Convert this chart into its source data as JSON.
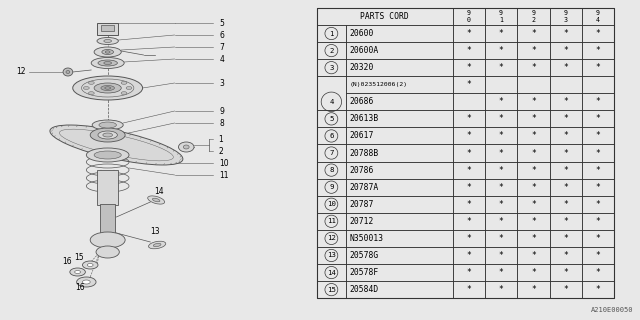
{
  "bg_color": "#e8e8e8",
  "table_header": "PARTS CORD",
  "year_cols": [
    "9\n0",
    "9\n1",
    "9\n2",
    "9\n3",
    "9\n4"
  ],
  "rows": [
    {
      "num": "1",
      "part": "20600",
      "marks": [
        "*",
        "*",
        "*",
        "*",
        "*"
      ],
      "merged_top": false,
      "merged_bot": false
    },
    {
      "num": "2",
      "part": "20600A",
      "marks": [
        "*",
        "*",
        "*",
        "*",
        "*"
      ],
      "merged_top": false,
      "merged_bot": false
    },
    {
      "num": "3",
      "part": "20320",
      "marks": [
        "*",
        "*",
        "*",
        "*",
        "*"
      ],
      "merged_top": false,
      "merged_bot": false
    },
    {
      "num": "4",
      "part": "(N)023512006(2)",
      "marks": [
        "*",
        "",
        "",
        "",
        ""
      ],
      "merged_top": true,
      "merged_bot": false
    },
    {
      "num": "4",
      "part": "20686",
      "marks": [
        "",
        "*",
        "*",
        "*",
        "*"
      ],
      "merged_top": false,
      "merged_bot": true
    },
    {
      "num": "5",
      "part": "20613B",
      "marks": [
        "*",
        "*",
        "*",
        "*",
        "*"
      ],
      "merged_top": false,
      "merged_bot": false
    },
    {
      "num": "6",
      "part": "20617",
      "marks": [
        "*",
        "*",
        "*",
        "*",
        "*"
      ],
      "merged_top": false,
      "merged_bot": false
    },
    {
      "num": "7",
      "part": "20788B",
      "marks": [
        "*",
        "*",
        "*",
        "*",
        "*"
      ],
      "merged_top": false,
      "merged_bot": false
    },
    {
      "num": "8",
      "part": "20786",
      "marks": [
        "*",
        "*",
        "*",
        "*",
        "*"
      ],
      "merged_top": false,
      "merged_bot": false
    },
    {
      "num": "9",
      "part": "20787A",
      "marks": [
        "*",
        "*",
        "*",
        "*",
        "*"
      ],
      "merged_top": false,
      "merged_bot": false
    },
    {
      "num": "10",
      "part": "20787",
      "marks": [
        "*",
        "*",
        "*",
        "*",
        "*"
      ],
      "merged_top": false,
      "merged_bot": false
    },
    {
      "num": "11",
      "part": "20712",
      "marks": [
        "*",
        "*",
        "*",
        "*",
        "*"
      ],
      "merged_top": false,
      "merged_bot": false
    },
    {
      "num": "12",
      "part": "N350013",
      "marks": [
        "*",
        "*",
        "*",
        "*",
        "*"
      ],
      "merged_top": false,
      "merged_bot": false
    },
    {
      "num": "13",
      "part": "20578G",
      "marks": [
        "*",
        "*",
        "*",
        "*",
        "*"
      ],
      "merged_top": false,
      "merged_bot": false
    },
    {
      "num": "14",
      "part": "20578F",
      "marks": [
        "*",
        "*",
        "*",
        "*",
        "*"
      ],
      "merged_top": false,
      "merged_bot": false
    },
    {
      "num": "15",
      "part": "20584D",
      "marks": [
        "*",
        "*",
        "*",
        "*",
        "*"
      ],
      "merged_top": false,
      "merged_bot": false
    }
  ],
  "diagram_label": "A210E00050",
  "lc": "#777777",
  "lc2": "#999999"
}
